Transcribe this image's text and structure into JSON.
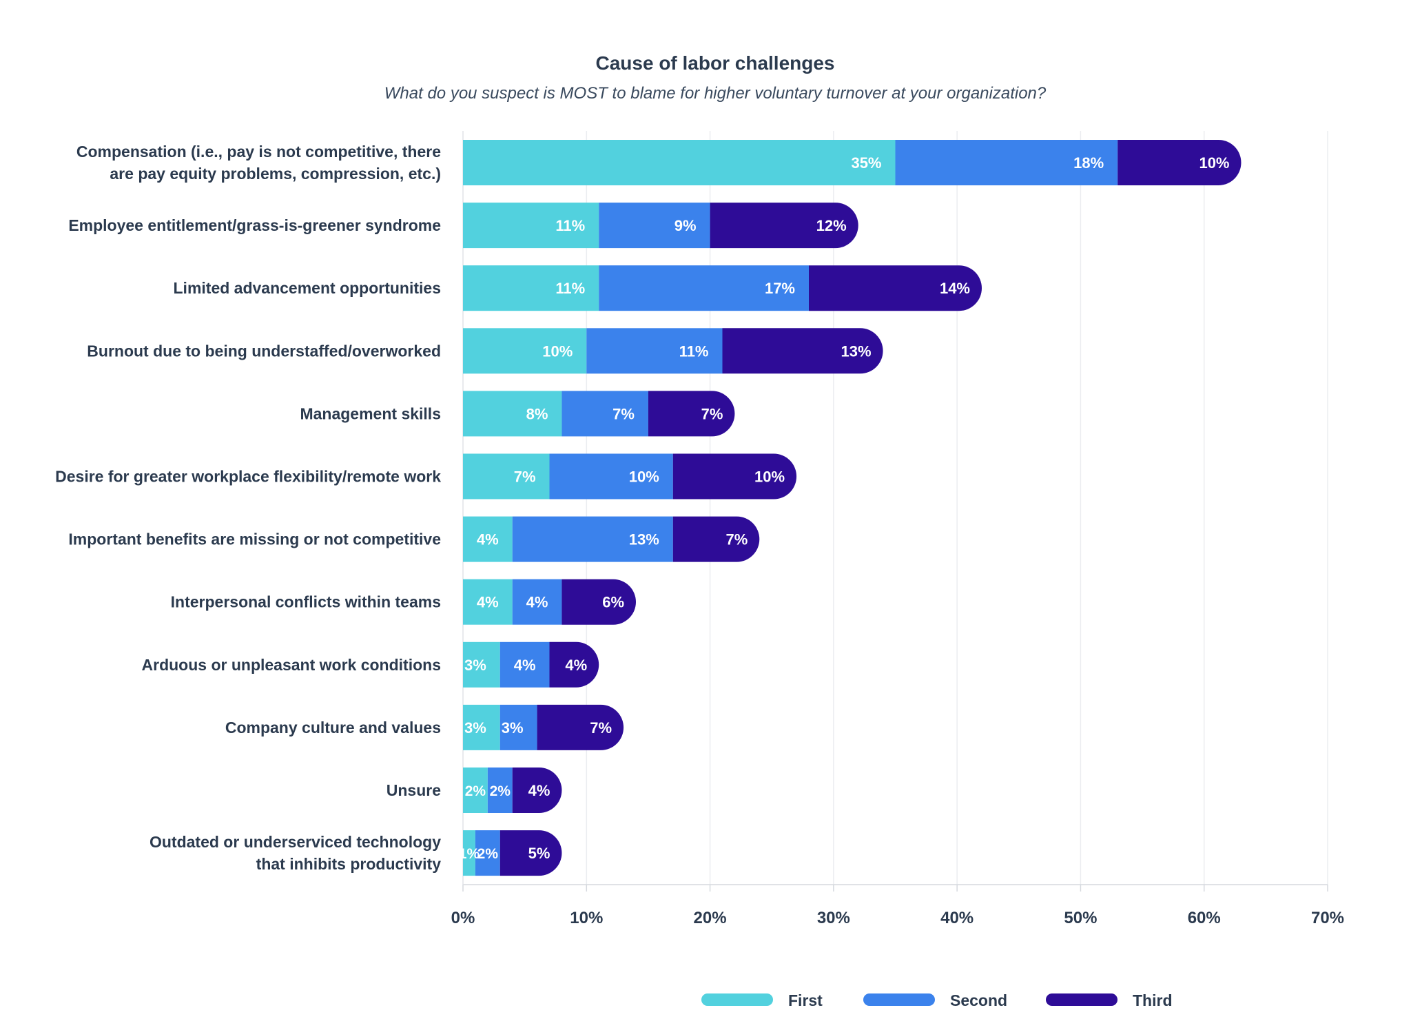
{
  "chart_data": {
    "type": "bar",
    "orientation": "horizontal",
    "stacked": true,
    "title": "Cause of labor challenges",
    "subtitle": "What do you suspect is MOST to blame for higher voluntary turnover at your organization?",
    "xlabel": "",
    "ylabel": "",
    "xlim": [
      0,
      70
    ],
    "x_ticks": [
      "0%",
      "10%",
      "20%",
      "30%",
      "40%",
      "50%",
      "60%",
      "70%"
    ],
    "grid": true,
    "legend_position": "bottom",
    "categories": [
      [
        "Compensation (i.e., pay is not competitive, there",
        "are pay equity problems, compression, etc.)"
      ],
      [
        "Employee entitlement/grass-is-greener syndrome"
      ],
      [
        "Limited advancement opportunities"
      ],
      [
        "Burnout due to being understaffed/overworked"
      ],
      [
        "Management skills"
      ],
      [
        "Desire for greater workplace flexibility/remote work"
      ],
      [
        "Important benefits are missing or not competitive"
      ],
      [
        "Interpersonal conflicts within teams"
      ],
      [
        "Arduous or unpleasant work conditions"
      ],
      [
        "Company culture and values"
      ],
      [
        "Unsure"
      ],
      [
        "Outdated or underserviced technology",
        "that inhibits productivity"
      ]
    ],
    "series": [
      {
        "name": "First",
        "color": "#52d1de",
        "values": [
          35,
          11,
          11,
          10,
          8,
          7,
          4,
          4,
          3,
          3,
          2,
          1
        ],
        "labels": [
          "35%",
          "11%",
          "11%",
          "10%",
          "8%",
          "7%",
          "4%",
          "4%",
          "3%",
          "3%",
          "2%",
          "1%"
        ]
      },
      {
        "name": "Second",
        "color": "#3b82ec",
        "values": [
          18,
          9,
          17,
          11,
          7,
          10,
          13,
          4,
          4,
          3,
          2,
          2
        ],
        "labels": [
          "18%",
          "9%",
          "17%",
          "11%",
          "7%",
          "10%",
          "13%",
          "4%",
          "4%",
          "3%",
          "2%",
          "2%"
        ]
      },
      {
        "name": "Third",
        "color": "#2e0c97",
        "values": [
          10,
          12,
          14,
          13,
          7,
          10,
          7,
          6,
          4,
          7,
          4,
          5
        ],
        "labels": [
          "10%",
          "12%",
          "14%",
          "13%",
          "7%",
          "10%",
          "7%",
          "6%",
          "4%",
          "7%",
          "4%",
          "5%"
        ]
      }
    ]
  }
}
